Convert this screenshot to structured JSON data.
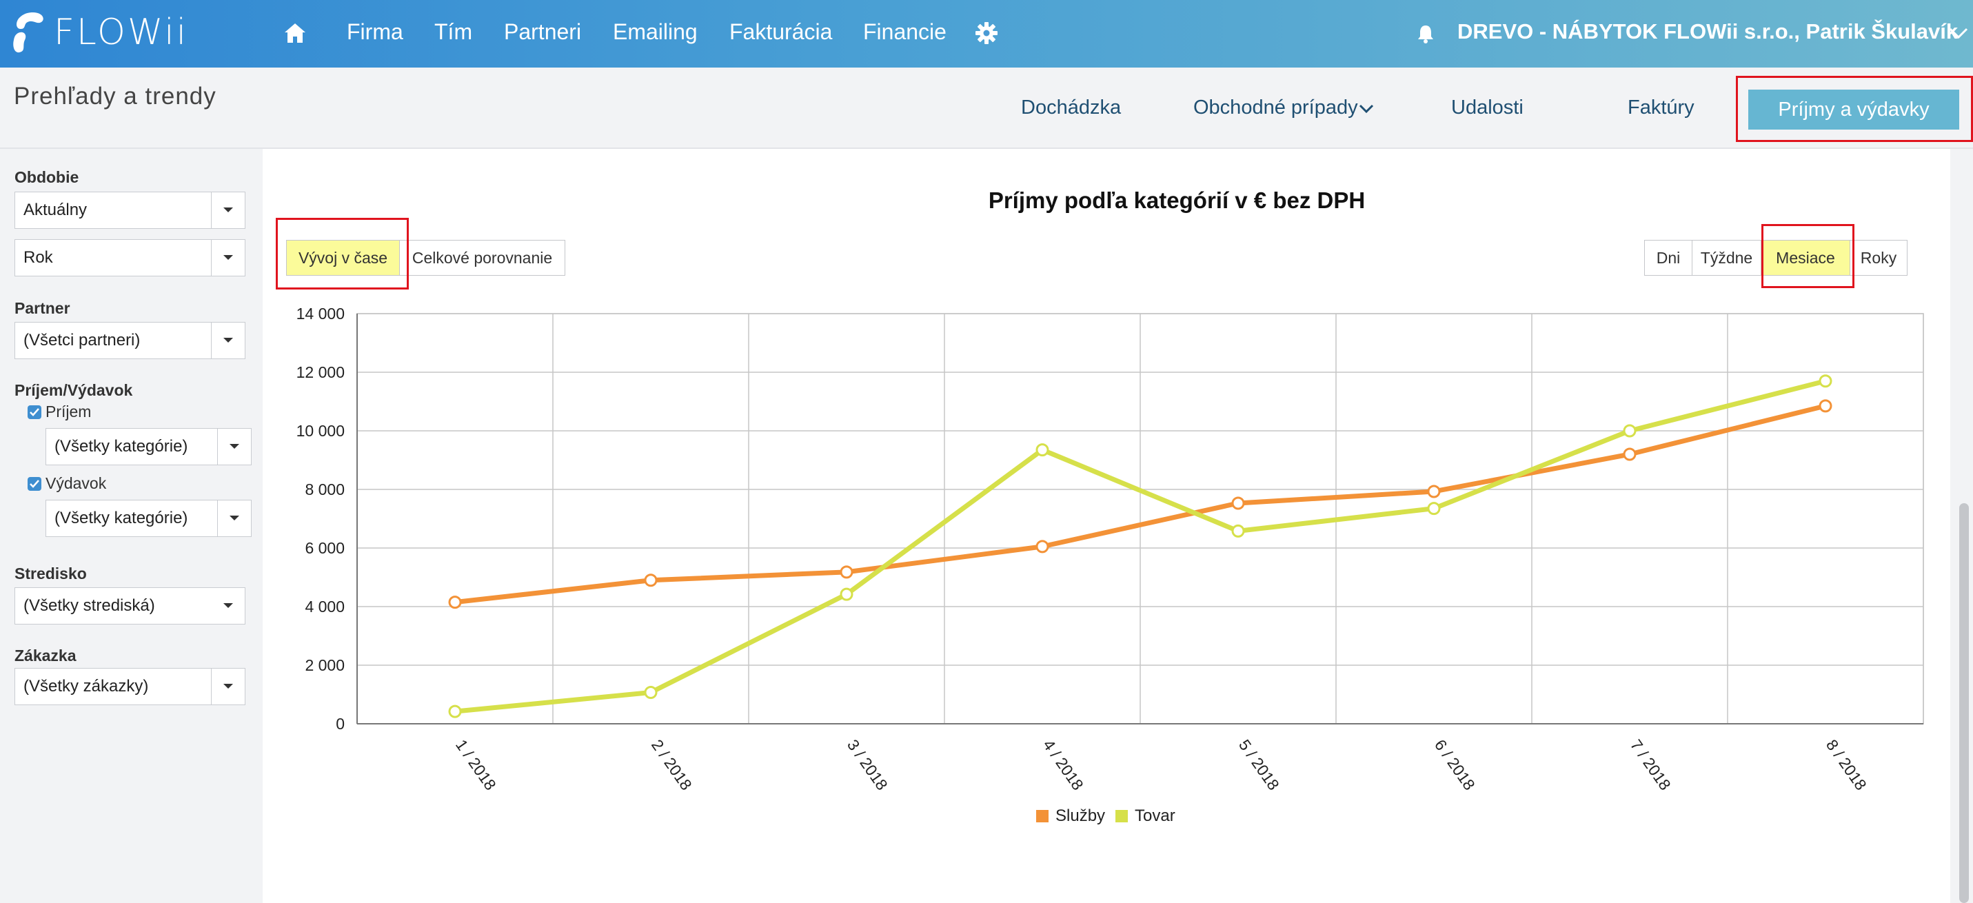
{
  "app": {
    "logo_text": "FLOWii",
    "company": "DREVO - NÁBYTOK FLOWii s.r.o., Patrik Škulavík"
  },
  "nav": {
    "items": [
      "Firma",
      "Tím",
      "Partneri",
      "Emailing",
      "Fakturácia",
      "Financie"
    ]
  },
  "page": {
    "title": "Prehľady a trendy",
    "tabs": [
      "Dochádzka",
      "Obchodné prípady",
      "Udalosti",
      "Faktúry"
    ],
    "active_tab": "Príjmy a výdavky"
  },
  "sidebar": {
    "obdobie_label": "Obdobie",
    "obdobie_value": "Aktuálny",
    "obdobie_unit": "Rok",
    "partner_label": "Partner",
    "partner_value": "(Všetci partneri)",
    "prijem_vydavok_label": "Príjem/Výdavok",
    "prijem_label": "Príjem",
    "prijem_category": "(Všetky kategórie)",
    "vydavok_label": "Výdavok",
    "vydavok_category": "(Všetky kategórie)",
    "stredisko_label": "Stredisko",
    "stredisko_value": "(Všetky strediská)",
    "zakazka_label": "Zákazka",
    "zakazka_value": "(Všetky zákazky)"
  },
  "view_toggle": {
    "time": "Vývoj v čase",
    "compare": "Celkové porovnanie",
    "selected": "Vývoj v čase"
  },
  "granularity": {
    "options": [
      "Dni",
      "Týždne",
      "Mesiace",
      "Roky"
    ],
    "selected": "Mesiace"
  },
  "colors": {
    "accent": "#66b6d2",
    "highlight": "#fbfb9a",
    "annotation": "#e0141e"
  },
  "chart_data": {
    "type": "line",
    "title": "Príjmy podľa kategórií v € bez DPH",
    "categories": [
      "1 / 2018",
      "2 / 2018",
      "3 / 2018",
      "4 / 2018",
      "5 / 2018",
      "6 / 2018",
      "7 / 2018",
      "8 / 2018"
    ],
    "series": [
      {
        "name": "Služby",
        "color": "#f39237",
        "values": [
          4150,
          4900,
          5180,
          6050,
          7530,
          7930,
          9200,
          10850
        ]
      },
      {
        "name": "Tovar",
        "color": "#d6e04a",
        "values": [
          420,
          1070,
          4420,
          9350,
          6580,
          7350,
          10000,
          11700
        ]
      }
    ],
    "yticks": [
      "0",
      "2 000",
      "4 000",
      "6 000",
      "8 000",
      "10 000",
      "12 000",
      "14 000"
    ],
    "ylim": [
      0,
      14000
    ],
    "grid": true,
    "legend": "bottom"
  }
}
